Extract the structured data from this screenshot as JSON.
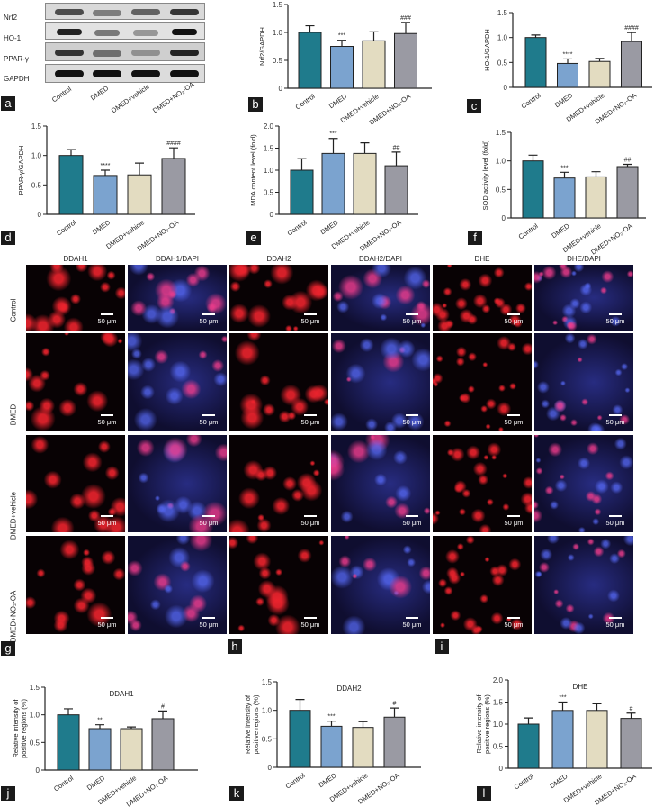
{
  "figure": {
    "panel_letters": [
      "a",
      "b",
      "c",
      "d",
      "e",
      "f",
      "g",
      "h",
      "i",
      "j",
      "k",
      "l"
    ],
    "groups": [
      "Control",
      "DMED",
      "DMED+vehicle",
      "DMED+NO₂-OA"
    ],
    "colors": {
      "control": "#1f7b8c",
      "dmed": "#7ba3cf",
      "vehicle": "#e3dcc1",
      "no2oa": "#9a9aa3"
    }
  },
  "western_blot": {
    "rows": [
      "Nrf2",
      "HO-1",
      "PPAR-γ",
      "GAPDH"
    ],
    "lanes": [
      "Control",
      "DMED",
      "DMED+vehicle",
      "DMED+NO₂-OA"
    ]
  },
  "microscopy": {
    "columns": [
      "DDAH1",
      "DDAH1/DAPI",
      "DDAH2",
      "DDAH2/DAPI",
      "DHE",
      "DHE/DAPI"
    ],
    "rows": [
      "Control",
      "DMED",
      "DMED+vehicle",
      "DMED+NO₂-OA"
    ],
    "scale_bar": "50 μm"
  },
  "chart_data": [
    {
      "id": "b",
      "type": "bar",
      "title": "",
      "ylabel": "Nrf2/GAPDH",
      "ylim": [
        0,
        1.5
      ],
      "yticks": [
        "0",
        "0.5",
        "1.0",
        "1.5"
      ],
      "categories": [
        "Control",
        "DMED",
        "DMED+vehicle",
        "DMED+NO₂-OA"
      ],
      "values": [
        1.0,
        0.75,
        0.85,
        0.98
      ],
      "errors": [
        0.12,
        0.11,
        0.16,
        0.2
      ],
      "annotations": [
        "",
        "***",
        "",
        "###"
      ]
    },
    {
      "id": "c",
      "type": "bar",
      "title": "",
      "ylabel": "HO-1/GAPDH",
      "ylim": [
        0,
        1.5
      ],
      "yticks": [
        "0",
        "0.5",
        "1.0",
        "1.5"
      ],
      "categories": [
        "Control",
        "DMED",
        "DMED+vehicle",
        "DMED+NO₂-OA"
      ],
      "values": [
        1.0,
        0.48,
        0.52,
        0.92
      ],
      "errors": [
        0.05,
        0.09,
        0.06,
        0.18
      ],
      "annotations": [
        "",
        "****",
        "",
        "####"
      ]
    },
    {
      "id": "d",
      "type": "bar",
      "title": "",
      "ylabel": "PPAR-γ/GAPDH",
      "ylim": [
        0,
        1.5
      ],
      "yticks": [
        "0",
        "0.5",
        "1.0",
        "1.5"
      ],
      "categories": [
        "Control",
        "DMED",
        "DMED+vehicle",
        "DMED+NO₂-OA"
      ],
      "values": [
        1.0,
        0.66,
        0.67,
        0.95
      ],
      "errors": [
        0.1,
        0.09,
        0.2,
        0.18
      ],
      "annotations": [
        "",
        "****",
        "",
        "####"
      ]
    },
    {
      "id": "e",
      "type": "bar",
      "title": "",
      "ylabel": "MDA content level (fold)",
      "ylim": [
        0,
        2.0
      ],
      "yticks": [
        "0",
        "0.5",
        "1.0",
        "1.5",
        "2.0"
      ],
      "categories": [
        "Control",
        "DMED",
        "DMED+vehicle",
        "DMED+NO₂-OA"
      ],
      "values": [
        1.0,
        1.38,
        1.38,
        1.1
      ],
      "errors": [
        0.26,
        0.34,
        0.24,
        0.31
      ],
      "annotations": [
        "",
        "***",
        "",
        "##"
      ]
    },
    {
      "id": "f",
      "type": "bar",
      "title": "",
      "ylabel": "SOD activity level (fold)",
      "ylim": [
        0,
        1.5
      ],
      "yticks": [
        "0",
        "0.5",
        "1.0",
        "1.5"
      ],
      "categories": [
        "Control",
        "DMED",
        "DMED+vehicle",
        "DMED+NO₂-OA"
      ],
      "values": [
        1.0,
        0.7,
        0.72,
        0.9
      ],
      "errors": [
        0.1,
        0.1,
        0.09,
        0.04
      ],
      "annotations": [
        "",
        "***",
        "",
        "##"
      ]
    },
    {
      "id": "j",
      "type": "bar",
      "title": "DDAH1",
      "ylabel": "Relative intensity of positive regions (%)",
      "ylim": [
        0,
        1.5
      ],
      "yticks": [
        "0",
        "0.5",
        "1.0",
        "1.5"
      ],
      "categories": [
        "Control",
        "DMED",
        "DMED+vehicle",
        "DMED+NO₂-OA"
      ],
      "values": [
        1.0,
        0.75,
        0.75,
        0.93
      ],
      "errors": [
        0.11,
        0.07,
        0.03,
        0.14
      ],
      "annotations": [
        "",
        "**",
        "",
        "#"
      ]
    },
    {
      "id": "k",
      "type": "bar",
      "title": "DDAH2",
      "ylabel": "Relative intensity of positive regions (%)",
      "ylim": [
        0,
        1.5
      ],
      "yticks": [
        "0",
        "0.5",
        "1.0",
        "1.5"
      ],
      "categories": [
        "Control",
        "DMED",
        "DMED+vehicle",
        "DMED+NO₂-OA"
      ],
      "values": [
        1.0,
        0.72,
        0.7,
        0.88
      ],
      "errors": [
        0.19,
        0.09,
        0.1,
        0.16
      ],
      "annotations": [
        "",
        "***",
        "",
        "#"
      ]
    },
    {
      "id": "l",
      "type": "bar",
      "title": "DHE",
      "ylabel": "Relative intensity of positive regions (%)",
      "ylim": [
        0,
        2.0
      ],
      "yticks": [
        "0",
        "0.5",
        "1.0",
        "1.5",
        "2.0"
      ],
      "categories": [
        "Control",
        "DMED",
        "DMED+vehicle",
        "DMED+NO₂-OA"
      ],
      "values": [
        1.0,
        1.31,
        1.31,
        1.13
      ],
      "errors": [
        0.14,
        0.19,
        0.15,
        0.12
      ],
      "annotations": [
        "",
        "***",
        "",
        "#"
      ]
    }
  ]
}
